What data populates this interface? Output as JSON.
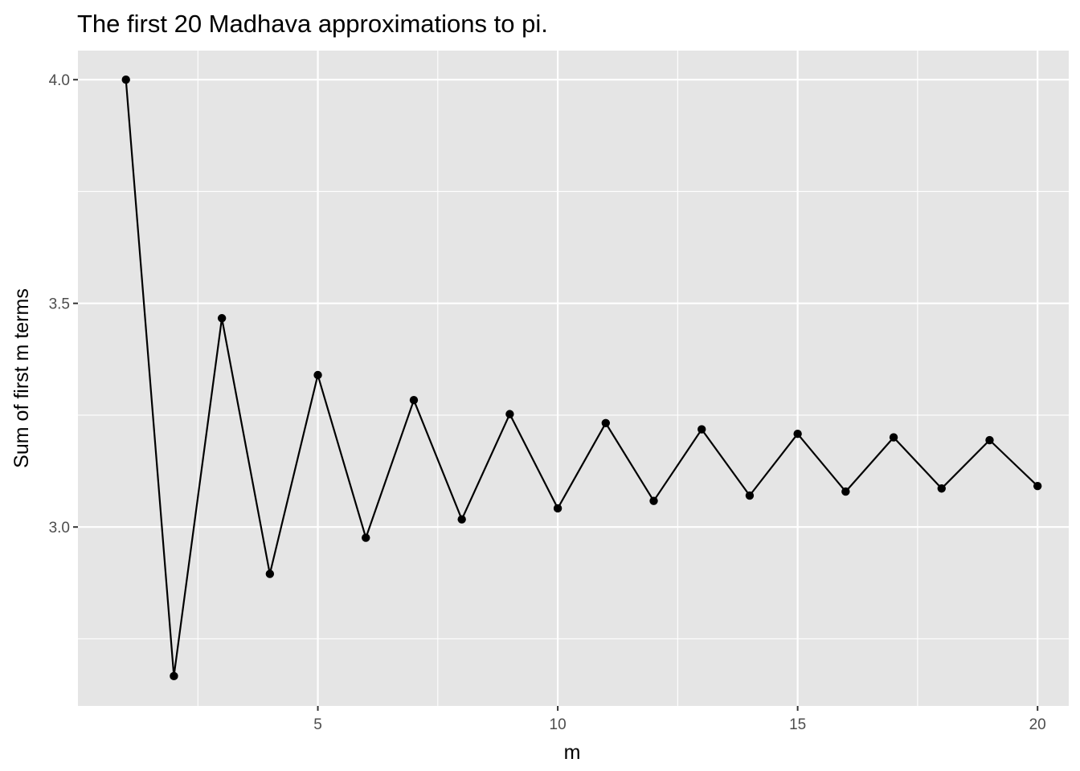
{
  "chart_data": {
    "type": "line",
    "title": "The first 20 Madhava approximations to pi.",
    "xlabel": "m",
    "ylabel": "Sum of first m terms",
    "x": [
      1,
      2,
      3,
      4,
      5,
      6,
      7,
      8,
      9,
      10,
      11,
      12,
      13,
      14,
      15,
      16,
      17,
      18,
      19,
      20
    ],
    "series": [
      {
        "values": [
          4.0,
          2.6667,
          3.4667,
          2.8952,
          3.3397,
          2.976,
          3.2837,
          3.0171,
          3.2524,
          3.0418,
          3.2323,
          3.0584,
          3.2184,
          3.0703,
          3.2082,
          3.0792,
          3.2004,
          3.0861,
          3.1942,
          3.0916
        ]
      }
    ],
    "xlim": [
      0.0,
      20.65
    ],
    "ylim": [
      2.6,
      4.065
    ],
    "x_ticks": [
      5,
      10,
      15,
      20
    ],
    "x_tick_labels": [
      "5",
      "10",
      "15",
      "20"
    ],
    "y_ticks": [
      3.0,
      3.5,
      4.0
    ],
    "y_tick_labels": [
      "3.0",
      "3.5",
      "4.0"
    ],
    "grid": true,
    "show_points": true,
    "colors": {
      "panel": "#e5e5e5",
      "grid": "#ffffff",
      "line": "#000000",
      "point": "#000000",
      "tick_label": "#4d4d4d"
    }
  }
}
